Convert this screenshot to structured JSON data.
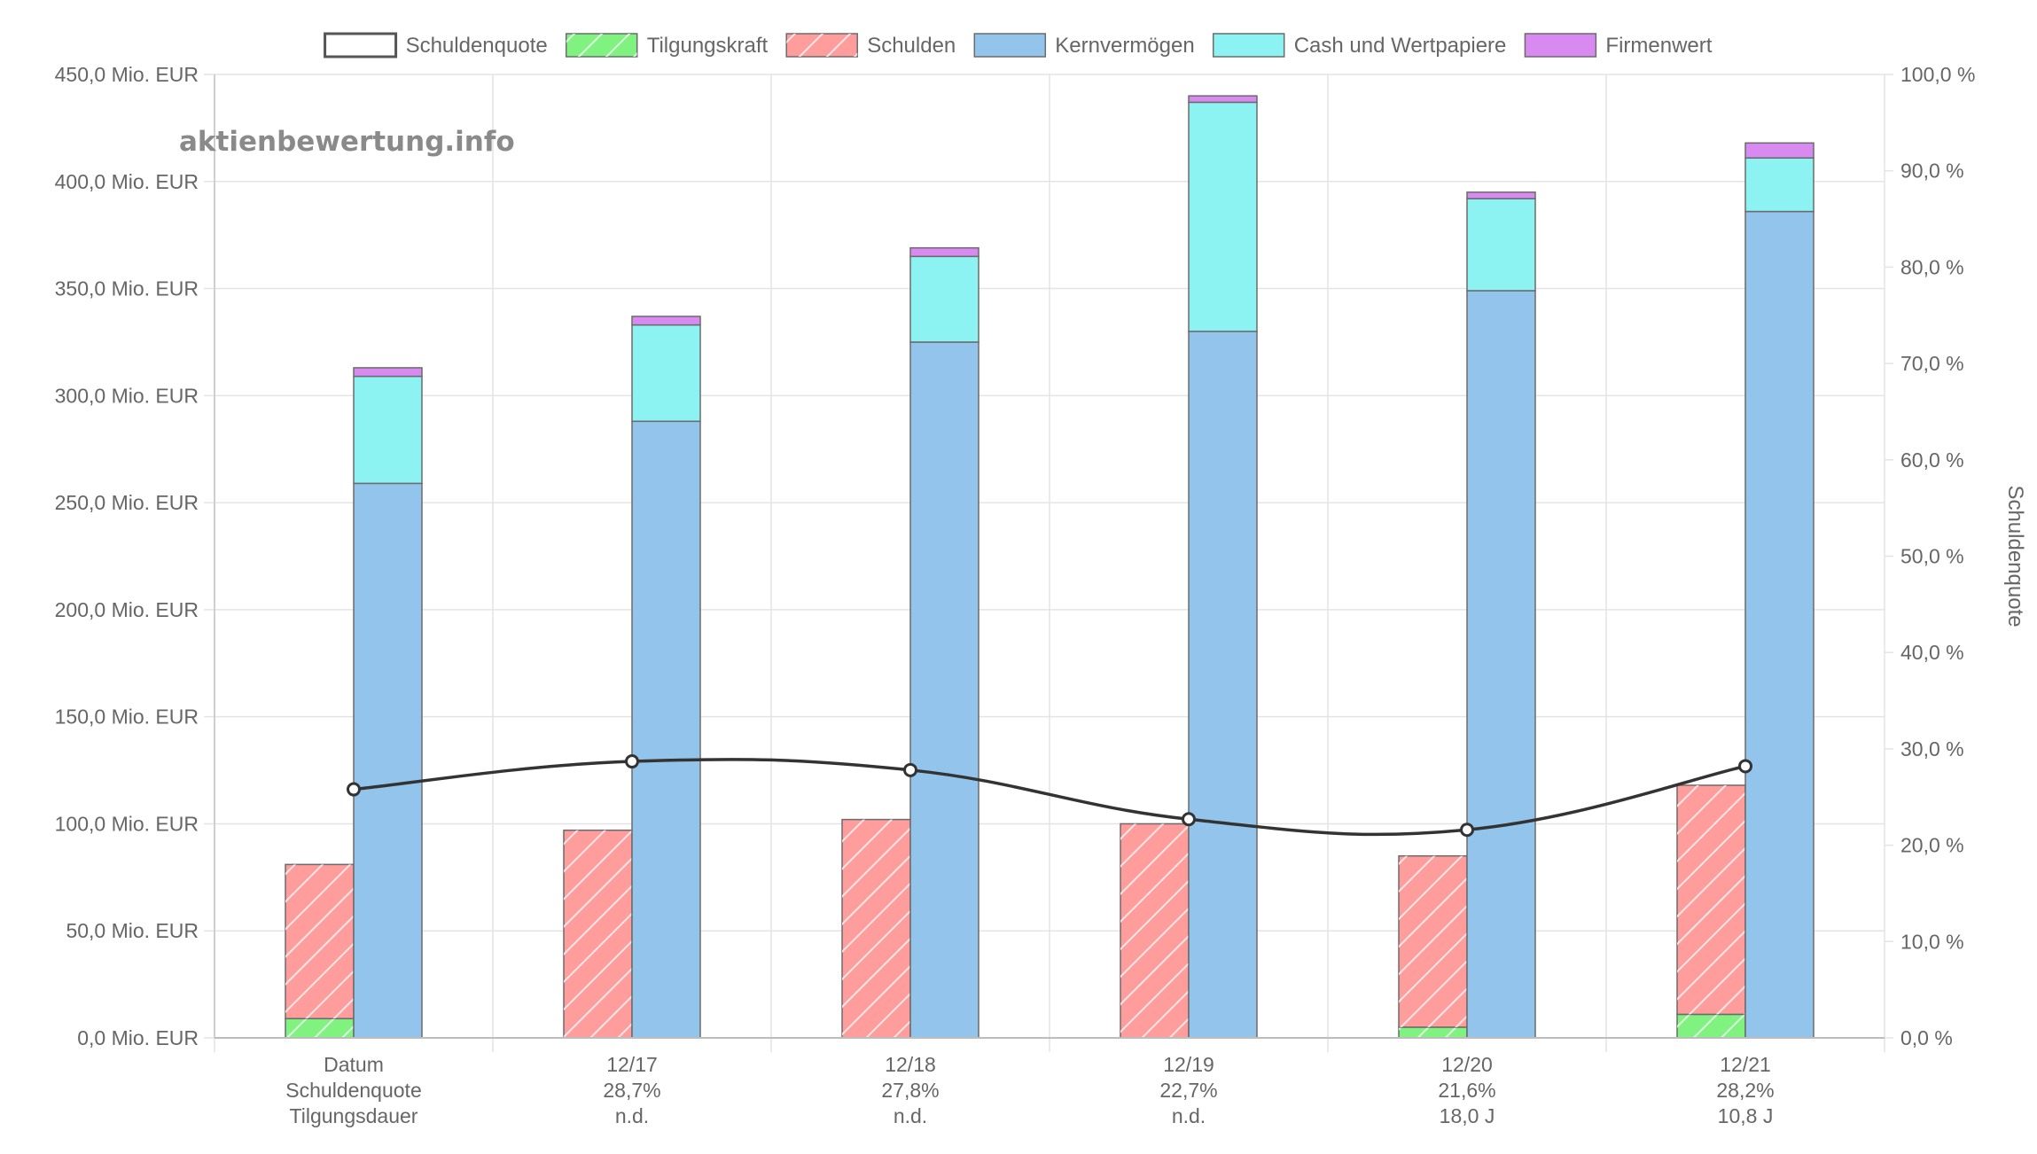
{
  "watermark": "aktienbewertung.info",
  "colors": {
    "tilgungskraft": "#7ff27f",
    "schulden": "#ff9c9c",
    "kernvermoegen": "#93c5ec",
    "cash": "#8df2f2",
    "firmenwert": "#d88af0",
    "line": "#333333",
    "grid": "#e4e4e4",
    "tick": "#666666"
  },
  "chart_data": {
    "type": "bar",
    "categories": [
      "Datum",
      "12/17",
      "12/18",
      "12/19",
      "12/20",
      "12/21"
    ],
    "row_labels": [
      [
        "Datum",
        "Schuldenquote",
        "Tilgungsdauer"
      ],
      [
        "12/17",
        "28,7%",
        "n.d."
      ],
      [
        "12/18",
        "27,8%",
        "n.d."
      ],
      [
        "12/19",
        "22,7%",
        "n.d."
      ],
      [
        "12/20",
        "21,6%",
        "18,0 J"
      ],
      [
        "12/21",
        "28,2%",
        "10,8 J"
      ]
    ],
    "legend": [
      "Schuldenquote",
      "Tilgungskraft",
      "Schulden",
      "Kernvermögen",
      "Cash und Wertpapiere",
      "Firmenwert"
    ],
    "stack_left": [
      {
        "name": "Tilgungskraft",
        "values": [
          9,
          0,
          0,
          0,
          5,
          11
        ]
      },
      {
        "name": "Schulden",
        "values": [
          72,
          97,
          102,
          100,
          80,
          107
        ]
      }
    ],
    "stack_right": [
      {
        "name": "Kernvermögen",
        "values": [
          259,
          288,
          325,
          330,
          349,
          386
        ]
      },
      {
        "name": "Cash und Wertpapiere",
        "values": [
          50,
          45,
          40,
          107,
          43,
          25
        ]
      },
      {
        "name": "Firmenwert",
        "values": [
          4,
          4,
          4,
          3,
          3,
          7
        ]
      }
    ],
    "line": {
      "name": "Schuldenquote",
      "values": [
        25.8,
        28.7,
        27.8,
        22.7,
        21.6,
        28.2
      ]
    },
    "y_left": {
      "min": 0,
      "max": 450,
      "step": 50,
      "tick_labels": [
        "0,0 Mio. EUR",
        "50,0 Mio. EUR",
        "100,0 Mio. EUR",
        "150,0 Mio. EUR",
        "200,0 Mio. EUR",
        "250,0 Mio. EUR",
        "300,0 Mio. EUR",
        "350,0 Mio. EUR",
        "400,0 Mio. EUR",
        "450,0 Mio. EUR"
      ]
    },
    "y_right": {
      "min": 0,
      "max": 100,
      "step": 10,
      "label": "Schuldenquote",
      "tick_labels": [
        "0,0 %",
        "10,0 %",
        "20,0 %",
        "30,0 %",
        "40,0 %",
        "50,0 %",
        "60,0 %",
        "70,0 %",
        "80,0 %",
        "90,0 %",
        "100,0 %"
      ]
    },
    "legend_position": "top"
  }
}
